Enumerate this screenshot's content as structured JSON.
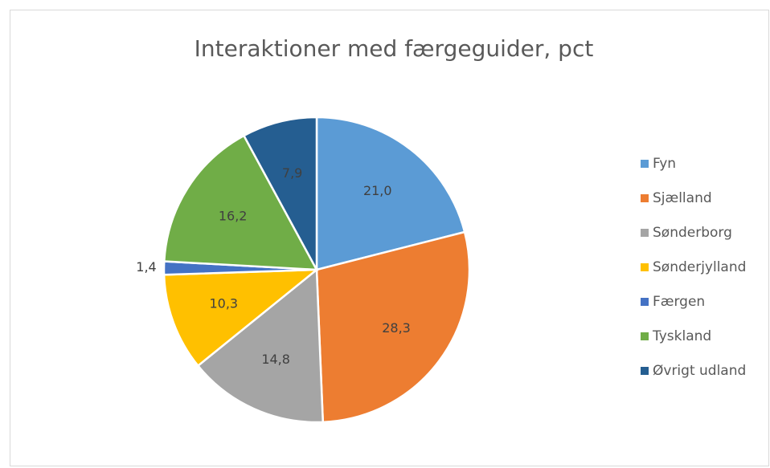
{
  "chart_data": {
    "type": "pie",
    "title": "Interaktioner med færgeguider, pct",
    "categories": [
      "Fyn",
      "Sjælland",
      "Sønderborg",
      "Sønderjylland",
      "Færgen",
      "Tyskland",
      "Øvrigt udland"
    ],
    "values": [
      21.0,
      28.3,
      14.8,
      10.3,
      1.4,
      16.2,
      7.9
    ],
    "value_labels": [
      "21,0",
      "28,3",
      "14,8",
      "10,3",
      "1,4",
      "16,2",
      "7,9"
    ],
    "colors": [
      "#5b9bd5",
      "#ed7d31",
      "#a5a5a5",
      "#ffc000",
      "#4472c4",
      "#70ad47",
      "#255e91"
    ],
    "legend": "right"
  }
}
